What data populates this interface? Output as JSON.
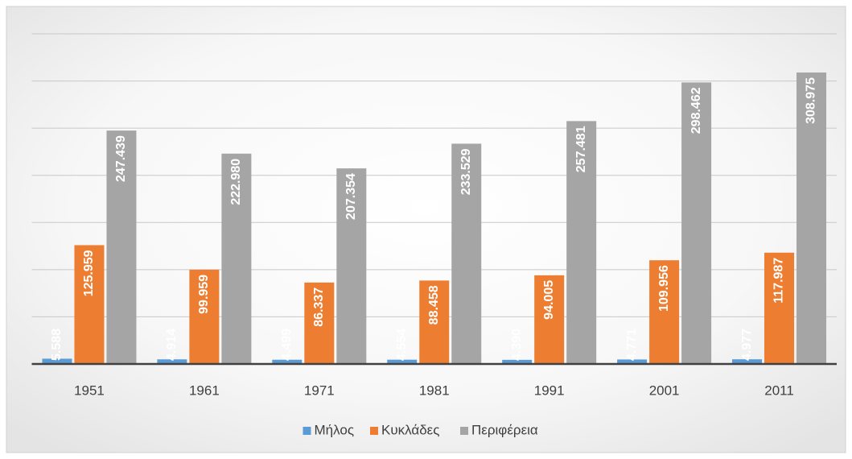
{
  "chart_data": {
    "type": "bar",
    "categories": [
      "1951",
      "1961",
      "1971",
      "1981",
      "1991",
      "2001",
      "2011"
    ],
    "series": [
      {
        "name": "Μήλος",
        "color": "#5b9bd5",
        "values": [
          5588,
          4914,
          4499,
          4554,
          4390,
          4771,
          4977
        ],
        "value_labels": [
          "5.588",
          "4.914",
          "4.499",
          "4.554",
          "4.390",
          "4.771",
          "4.977"
        ]
      },
      {
        "name": "Κυκλάδες",
        "color": "#ed7d31",
        "values": [
          125959,
          99959,
          86337,
          88458,
          94005,
          109956,
          117987
        ],
        "value_labels": [
          "125.959",
          "99.959",
          "86.337",
          "88.458",
          "94.005",
          "109.956",
          "117.987"
        ]
      },
      {
        "name": "Περιφέρεια",
        "color": "#a5a5a5",
        "values": [
          247439,
          222980,
          207354,
          233529,
          257481,
          298462,
          308975
        ],
        "value_labels": [
          "247.439",
          "222.980",
          "207.354",
          "233.529",
          "257.481",
          "298.462",
          "308.975"
        ]
      }
    ],
    "ylim": [
      0,
      350000
    ],
    "yticks": [
      0,
      50000,
      100000,
      150000,
      200000,
      250000,
      300000,
      350000
    ],
    "grid": true,
    "legend": "bottom"
  }
}
